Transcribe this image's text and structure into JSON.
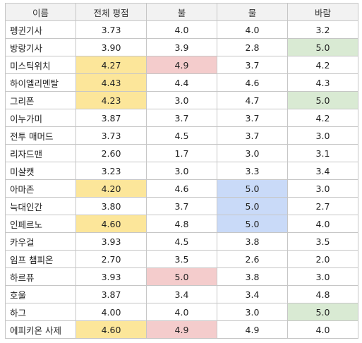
{
  "colors": {
    "yellow": "#fce69a",
    "red": "#f4cccc",
    "blue": "#c9daf8",
    "green": "#d9ead3",
    "header_bg": "#f2f2f2",
    "grid": "#c6c6c6"
  },
  "columns": [
    "이름",
    "전체 평점",
    "불",
    "물",
    "바람"
  ],
  "rows": [
    {
      "name": "펭귄기사",
      "overall": "3.73",
      "fire": "4.0",
      "water": "4.0",
      "wind": "3.2",
      "hl": {}
    },
    {
      "name": "방랑기사",
      "overall": "3.90",
      "fire": "3.9",
      "water": "2.8",
      "wind": "5.0",
      "hl": {
        "wind": "green"
      }
    },
    {
      "name": "미스틱위치",
      "overall": "4.27",
      "fire": "4.9",
      "water": "3.7",
      "wind": "4.2",
      "hl": {
        "overall": "yellow",
        "fire": "red"
      }
    },
    {
      "name": "하이엘리멘탈",
      "overall": "4.43",
      "fire": "4.4",
      "water": "4.6",
      "wind": "4.3",
      "hl": {
        "overall": "yellow"
      }
    },
    {
      "name": "그리폰",
      "overall": "4.23",
      "fire": "3.0",
      "water": "4.7",
      "wind": "5.0",
      "hl": {
        "overall": "yellow",
        "wind": "green"
      }
    },
    {
      "name": "이누가미",
      "overall": "3.87",
      "fire": "3.7",
      "water": "3.7",
      "wind": "4.2",
      "hl": {}
    },
    {
      "name": "전투 매머드",
      "overall": "3.73",
      "fire": "4.5",
      "water": "3.7",
      "wind": "3.0",
      "hl": {}
    },
    {
      "name": "리자드맨",
      "overall": "2.60",
      "fire": "1.7",
      "water": "3.0",
      "wind": "3.1",
      "hl": {}
    },
    {
      "name": "미샬캣",
      "overall": "3.23",
      "fire": "3.0",
      "water": "3.3",
      "wind": "3.4",
      "hl": {}
    },
    {
      "name": "아마존",
      "overall": "4.20",
      "fire": "4.6",
      "water": "5.0",
      "wind": "3.0",
      "hl": {
        "overall": "yellow",
        "water": "blue"
      }
    },
    {
      "name": "늑대인간",
      "overall": "3.80",
      "fire": "3.7",
      "water": "5.0",
      "wind": "2.7",
      "hl": {
        "water": "blue"
      }
    },
    {
      "name": "인페르노",
      "overall": "4.60",
      "fire": "4.8",
      "water": "5.0",
      "wind": "4.0",
      "hl": {
        "overall": "yellow",
        "water": "blue"
      }
    },
    {
      "name": "카우걸",
      "overall": "3.93",
      "fire": "4.5",
      "water": "3.8",
      "wind": "3.5",
      "hl": {}
    },
    {
      "name": "임프 챔피온",
      "overall": "2.70",
      "fire": "3.5",
      "water": "2.6",
      "wind": "2.0",
      "hl": {}
    },
    {
      "name": "하르퓨",
      "overall": "3.93",
      "fire": "5.0",
      "water": "3.8",
      "wind": "3.0",
      "hl": {
        "fire": "red"
      }
    },
    {
      "name": "호울",
      "overall": "3.87",
      "fire": "3.4",
      "water": "3.4",
      "wind": "4.8",
      "hl": {}
    },
    {
      "name": "하그",
      "overall": "4.00",
      "fire": "4.0",
      "water": "3.0",
      "wind": "5.0",
      "hl": {
        "wind": "green"
      }
    },
    {
      "name": "에피키온 사제",
      "overall": "4.60",
      "fire": "4.9",
      "water": "4.9",
      "wind": "4.0",
      "hl": {
        "overall": "yellow",
        "fire": "red"
      }
    }
  ]
}
